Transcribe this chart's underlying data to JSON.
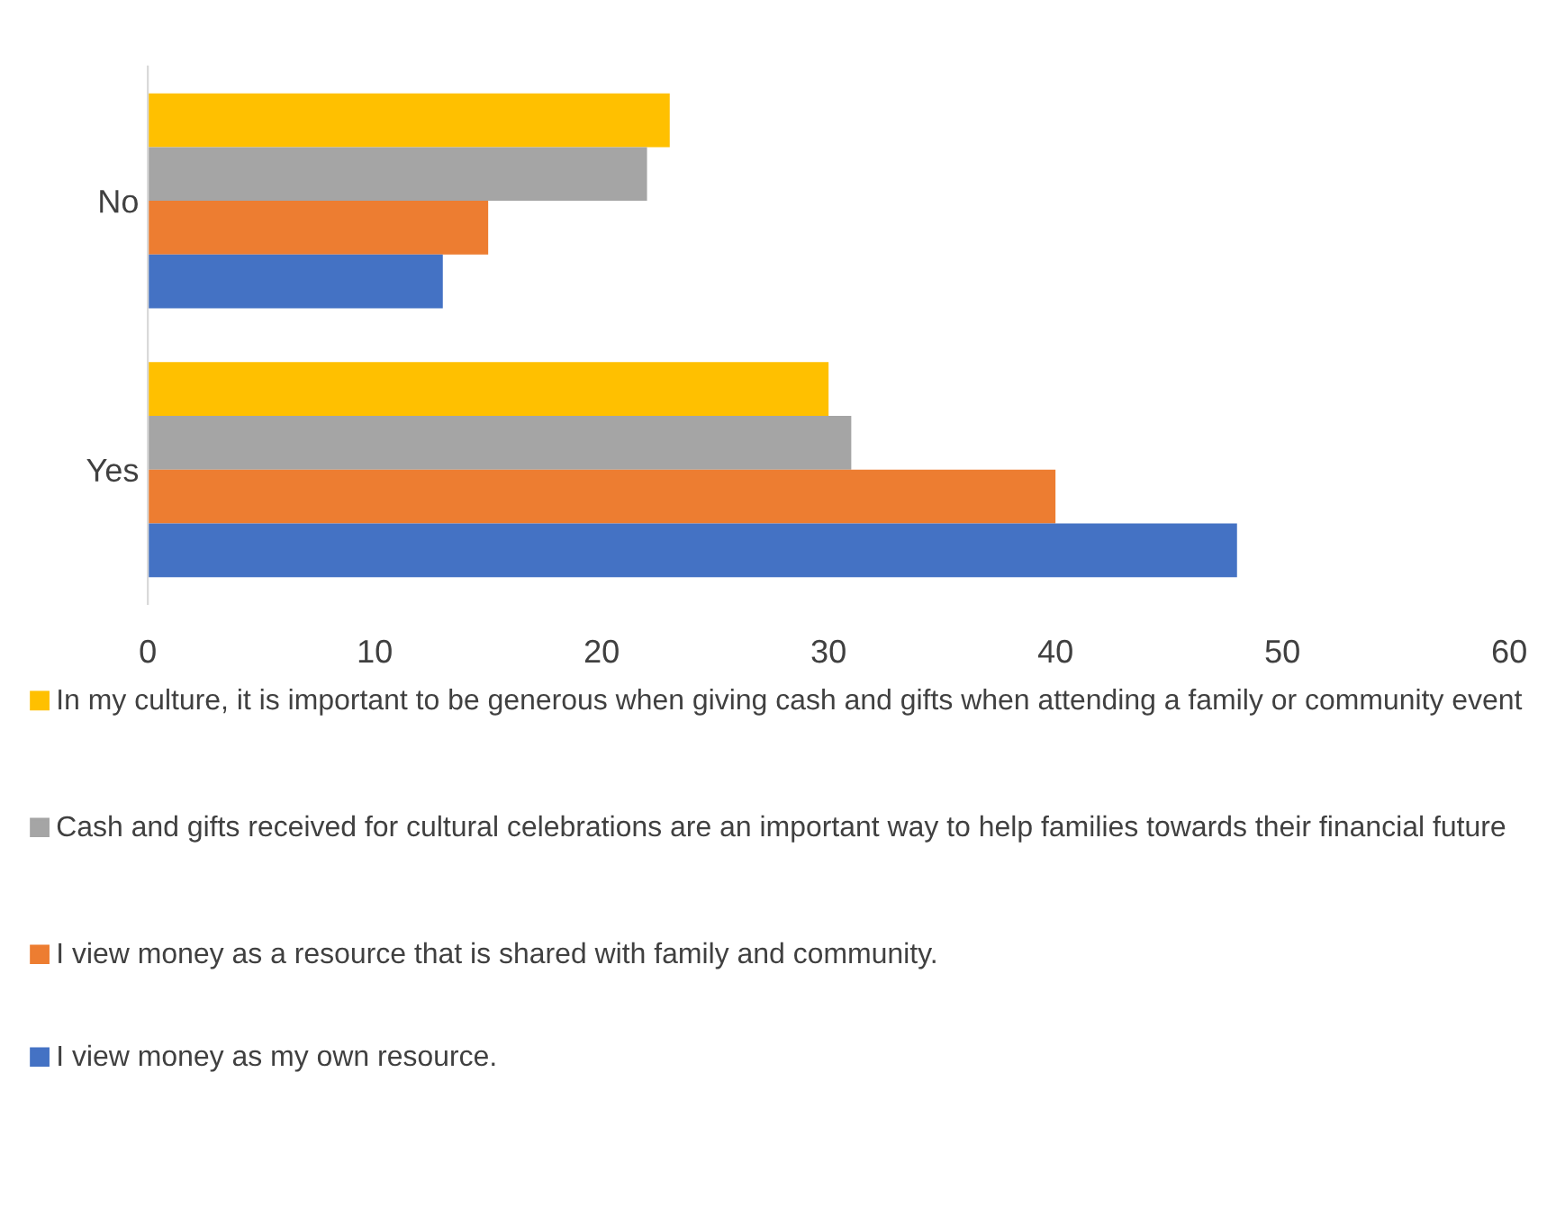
{
  "chart_data": {
    "type": "bar",
    "orientation": "horizontal",
    "categories": [
      "No",
      "Yes"
    ],
    "series": [
      {
        "name": "In my culture, it is important to be generous when giving cash and gifts when attending a family or community event",
        "color": "#ffc000",
        "values": [
          23,
          30
        ]
      },
      {
        "name": "Cash and gifts received for cultural celebrations are an important way to help families towards their financial future",
        "color": "#a5a5a5",
        "values": [
          22,
          31
        ]
      },
      {
        "name": "I view money as a resource that is shared with family and community.",
        "color": "#ed7d31",
        "values": [
          15,
          40
        ]
      },
      {
        "name": "I view money as my own resource.",
        "color": "#4472c4",
        "values": [
          13,
          48
        ]
      }
    ],
    "xlim": [
      0,
      60
    ],
    "xticks": [
      0,
      10,
      20,
      30,
      40,
      50,
      60
    ],
    "grid": false,
    "legend": "bottom"
  }
}
